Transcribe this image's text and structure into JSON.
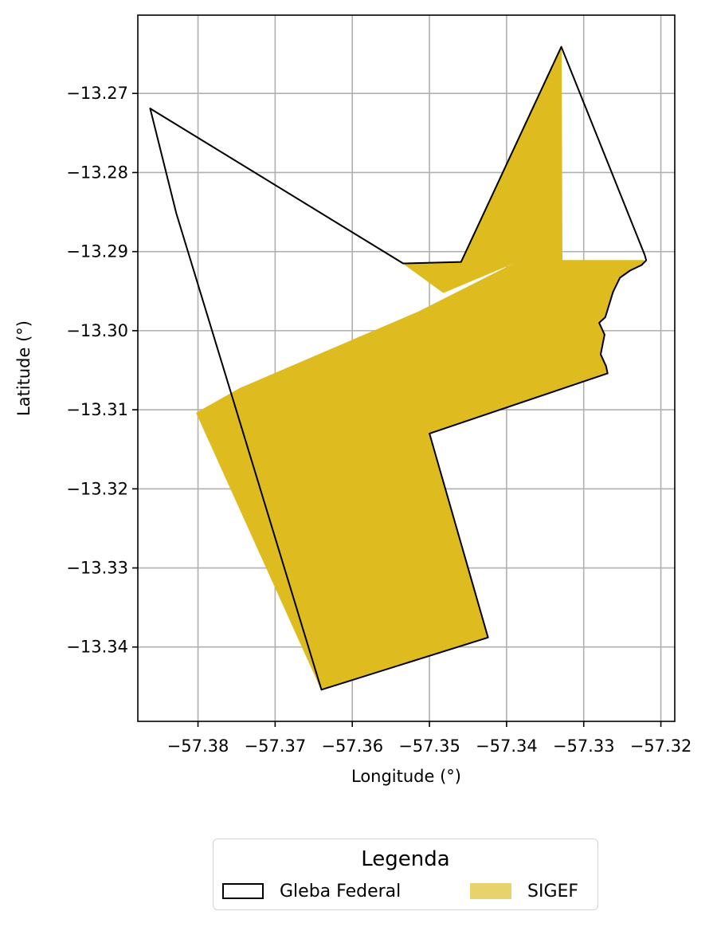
{
  "chart_data": {
    "type": "map",
    "xlabel": "Longitude (°)",
    "ylabel": "Latitude (°)",
    "xlim": [
      -57.3878,
      -57.3182
    ],
    "ylim": [
      -13.3494,
      -13.2601
    ],
    "xticks": [
      -57.38,
      -57.37,
      -57.36,
      -57.35,
      -57.34,
      -57.33,
      -57.32
    ],
    "xtick_labels": [
      "−57.38",
      "−57.37",
      "−57.36",
      "−57.35",
      "−57.34",
      "−57.33",
      "−57.32"
    ],
    "yticks": [
      -13.27,
      -13.28,
      -13.29,
      -13.3,
      -13.31,
      -13.32,
      -13.33,
      -13.34
    ],
    "ytick_labels": [
      "−13.27",
      "−13.28",
      "−13.29",
      "−13.30",
      "−13.31",
      "−13.32",
      "−13.33",
      "−13.34"
    ],
    "grid": true,
    "legend_position": "below",
    "legend": {
      "title": "Legenda",
      "entries": [
        {
          "label": "Gleba Federal",
          "style": "outline",
          "color": "#000000"
        },
        {
          "label": "SIGEF",
          "style": "fill",
          "color": "#E8D26C"
        }
      ]
    },
    "layers": [
      {
        "name": "SIGEF",
        "color": "#DEBC1F",
        "polygons": [
          [
            [
              -57.3802,
              -13.3104
            ],
            [
              -57.3746,
              -13.3073
            ],
            [
              -57.3514,
              -13.2976
            ],
            [
              -57.3382,
              -13.2911
            ],
            [
              -57.3222,
              -13.2911
            ],
            [
              -57.3225,
              -13.2917
            ],
            [
              -57.324,
              -13.2924
            ],
            [
              -57.3253,
              -13.2933
            ],
            [
              -57.3262,
              -13.2951
            ],
            [
              -57.3272,
              -13.2983
            ],
            [
              -57.328,
              -13.299
            ],
            [
              -57.3273,
              -13.3005
            ],
            [
              -57.3278,
              -13.303
            ],
            [
              -57.3271,
              -13.3045
            ],
            [
              -57.3269,
              -13.3054
            ],
            [
              -57.3346,
              -13.308
            ],
            [
              -57.35,
              -13.313
            ],
            [
              -57.3424,
              -13.3388
            ],
            [
              -57.364,
              -13.3454
            ]
          ],
          [
            [
              -57.3534,
              -13.2915
            ],
            [
              -57.3459,
              -13.2913
            ],
            [
              -57.3329,
              -13.2641
            ],
            [
              -57.3328,
              -13.2911
            ],
            [
              -57.3382,
              -13.2911
            ],
            [
              -57.3482,
              -13.2952
            ]
          ]
        ]
      },
      {
        "name": "Gleba Federal",
        "color": "#000000",
        "polygons": [
          [
            [
              -57.3862,
              -13.2719
            ],
            [
              -57.3534,
              -13.2915
            ],
            [
              -57.3459,
              -13.2913
            ],
            [
              -57.3329,
              -13.2641
            ],
            [
              -57.3221,
              -13.2904
            ],
            [
              -57.3219,
              -13.2911
            ],
            [
              -57.3225,
              -13.2917
            ],
            [
              -57.324,
              -13.2924
            ],
            [
              -57.3253,
              -13.2933
            ],
            [
              -57.3262,
              -13.2951
            ],
            [
              -57.3272,
              -13.2983
            ],
            [
              -57.328,
              -13.299
            ],
            [
              -57.3273,
              -13.3005
            ],
            [
              -57.3278,
              -13.303
            ],
            [
              -57.3271,
              -13.3045
            ],
            [
              -57.3269,
              -13.3054
            ],
            [
              -57.35,
              -13.313
            ],
            [
              -57.3424,
              -13.3388
            ],
            [
              -57.364,
              -13.3454
            ],
            [
              -57.3828,
              -13.2852
            ]
          ]
        ]
      }
    ]
  }
}
